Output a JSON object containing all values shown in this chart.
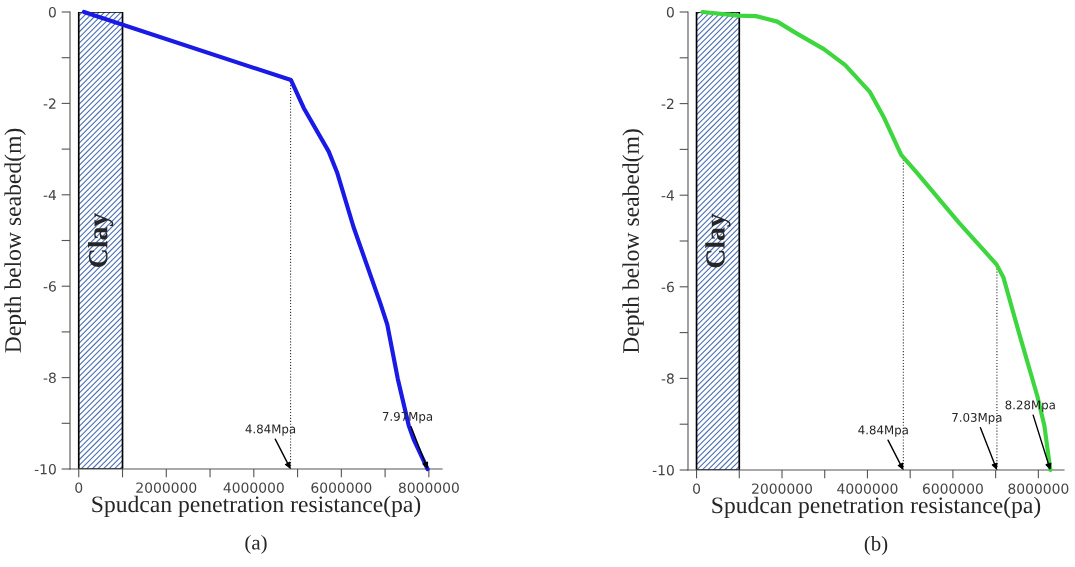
{
  "chart_data": [
    {
      "type": "line",
      "xlabel": "Spudcan penetration resistance(pa)",
      "ylabel": "Depth below seabed(m)",
      "series": [
        {
          "color": "#1a1ae6",
          "x": [
            120000,
            4850000,
            5140000,
            5710000,
            5910000,
            6280000,
            6890000,
            7050000,
            7290000,
            7540000,
            7660000,
            7970000
          ],
          "values": [
            0,
            -1.49,
            -2.1,
            -3.05,
            -3.53,
            -4.71,
            -6.37,
            -6.84,
            -8.03,
            -9.05,
            -9.37,
            -10
          ]
        }
      ],
      "xlim": [
        -200000,
        8300000
      ],
      "ylim": [
        -10,
        0
      ],
      "xticks": [
        0,
        {
          "value": 1000000,
          "label": null
        },
        2000000,
        {
          "value": 3000000,
          "label": null
        },
        4000000,
        {
          "value": 5000000,
          "label": null
        },
        6000000,
        {
          "value": 7000000,
          "label": null
        },
        8000000
      ],
      "yticks": [
        0,
        {
          "value": -1,
          "label": null
        },
        -2,
        {
          "value": -3,
          "label": null
        },
        -4,
        {
          "value": -5,
          "label": null
        },
        -6,
        {
          "value": -7,
          "label": null
        },
        -8,
        {
          "value": -9,
          "label": null
        },
        -10
      ],
      "bands": [
        {
          "axis": "x",
          "from": 0,
          "to": 1000000,
          "label": "Clay",
          "color": "#4a6fb5"
        }
      ],
      "ref_lines": [
        {
          "axis": "x",
          "value": 4840000,
          "line_style": "dotted"
        }
      ],
      "annotations": [
        {
          "text": "4.84Mpa",
          "x": 4840000,
          "y": -10
        },
        {
          "text": "7.97Mpa",
          "x": 7970000,
          "y": -10
        },
        "(a)"
      ],
      "grid": false,
      "legend": false,
      "marker": "none",
      "line_style": "solid"
    },
    {
      "type": "line",
      "xlabel": "Spudcan penetration resistance(pa)",
      "ylabel": "Depth below seabed(m)",
      "series": [
        {
          "color": "#3ed63e",
          "x": [
            140000,
            980000,
            1390000,
            1890000,
            2310000,
            2980000,
            3480000,
            4060000,
            4390000,
            4790000,
            5140000,
            6140000,
            7020000,
            7180000,
            7560000,
            7980000,
            8140000,
            8280000
          ],
          "values": [
            0,
            -0.08,
            -0.09,
            -0.21,
            -0.45,
            -0.81,
            -1.16,
            -1.75,
            -2.31,
            -3.12,
            -3.49,
            -4.6,
            -5.51,
            -5.79,
            -7.05,
            -8.4,
            -9.03,
            -10
          ]
        }
      ],
      "xlim": [
        -200000,
        8600000
      ],
      "ylim": [
        -10,
        0
      ],
      "xticks": [
        0,
        {
          "value": 1000000,
          "label": null
        },
        2000000,
        {
          "value": 3000000,
          "label": null
        },
        4000000,
        {
          "value": 5000000,
          "label": null
        },
        6000000,
        {
          "value": 7000000,
          "label": null
        },
        8000000
      ],
      "yticks": [
        0,
        {
          "value": -1,
          "label": null
        },
        -2,
        {
          "value": -3,
          "label": null
        },
        -4,
        {
          "value": -5,
          "label": null
        },
        -6,
        {
          "value": -7,
          "label": null
        },
        -8,
        {
          "value": -9,
          "label": null
        },
        -10
      ],
      "bands": [
        {
          "axis": "x",
          "from": 0,
          "to": 1000000,
          "label": "Clay",
          "color": "#4a6fb5"
        }
      ],
      "ref_lines": [
        {
          "axis": "x",
          "value": 4840000,
          "line_style": "dotted"
        },
        {
          "axis": "x",
          "value": 7030000,
          "line_style": "dotted"
        }
      ],
      "annotations": [
        {
          "text": "4.84Mpa",
          "x": 4840000,
          "y": -10
        },
        {
          "text": "7.03Mpa",
          "x": 7030000,
          "y": -10
        },
        {
          "text": "8.28Mpa",
          "x": 8280000,
          "y": -10
        },
        "(b)"
      ],
      "grid": false,
      "legend": false,
      "marker": "none",
      "line_style": "solid"
    }
  ]
}
